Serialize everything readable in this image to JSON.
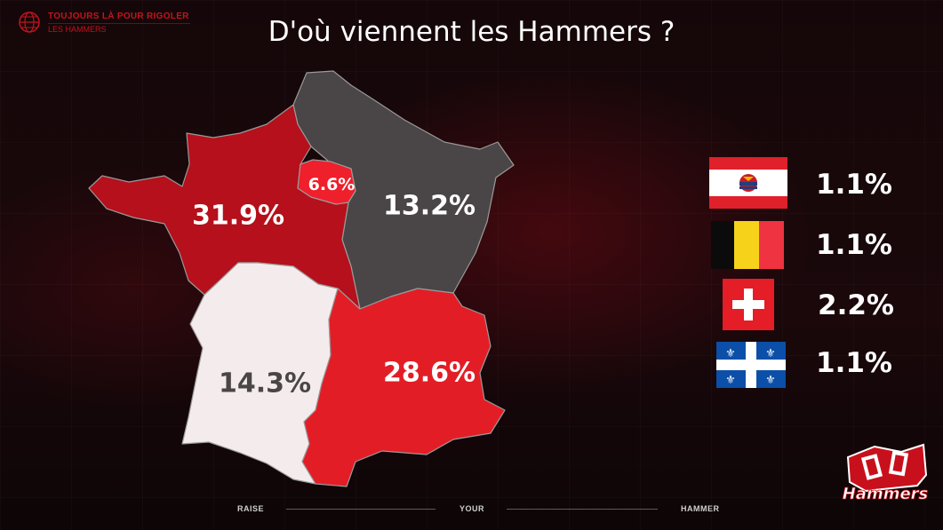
{
  "brand": {
    "line1": "TOUJOURS LÀ POUR RIGOLER",
    "line2": "LES HAMMERS"
  },
  "title": "D'où viennent les Hammers ?",
  "chart_data": {
    "type": "map",
    "title": "D'où viennent les Hammers ?",
    "regions": [
      {
        "name": "Nord-Ouest",
        "value": 31.9,
        "label": "31.9%",
        "color": "#b5101b",
        "text_color": "#ffffff"
      },
      {
        "name": "Île-de-France",
        "value": 6.6,
        "label": "6.6%",
        "color": "#ef1f2b",
        "text_color": "#ffffff"
      },
      {
        "name": "Nord-Est",
        "value": 13.2,
        "label": "13.2%",
        "color": "#4a4546",
        "text_color": "#ffffff"
      },
      {
        "name": "Sud-Ouest",
        "value": 14.3,
        "label": "14.3%",
        "color": "#f4ecec",
        "text_color": "#4a4546"
      },
      {
        "name": "Sud-Est",
        "value": 28.6,
        "label": "28.6%",
        "color": "#e31d26",
        "text_color": "#ffffff"
      }
    ],
    "international": [
      {
        "flag": "french-polynesia",
        "value": 1.1,
        "label": "1.1%"
      },
      {
        "flag": "belgium",
        "value": 1.1,
        "label": "1.1%"
      },
      {
        "flag": "switzerland",
        "value": 2.2,
        "label": "2.2%"
      },
      {
        "flag": "quebec",
        "value": 1.1,
        "label": "1.1%"
      }
    ]
  },
  "footer": {
    "words": [
      "RAISE",
      "YOUR",
      "HAMMER"
    ]
  },
  "logo": {
    "text": "Hammers"
  },
  "colors": {
    "background": "#12080a",
    "brand_red": "#c2141e"
  }
}
